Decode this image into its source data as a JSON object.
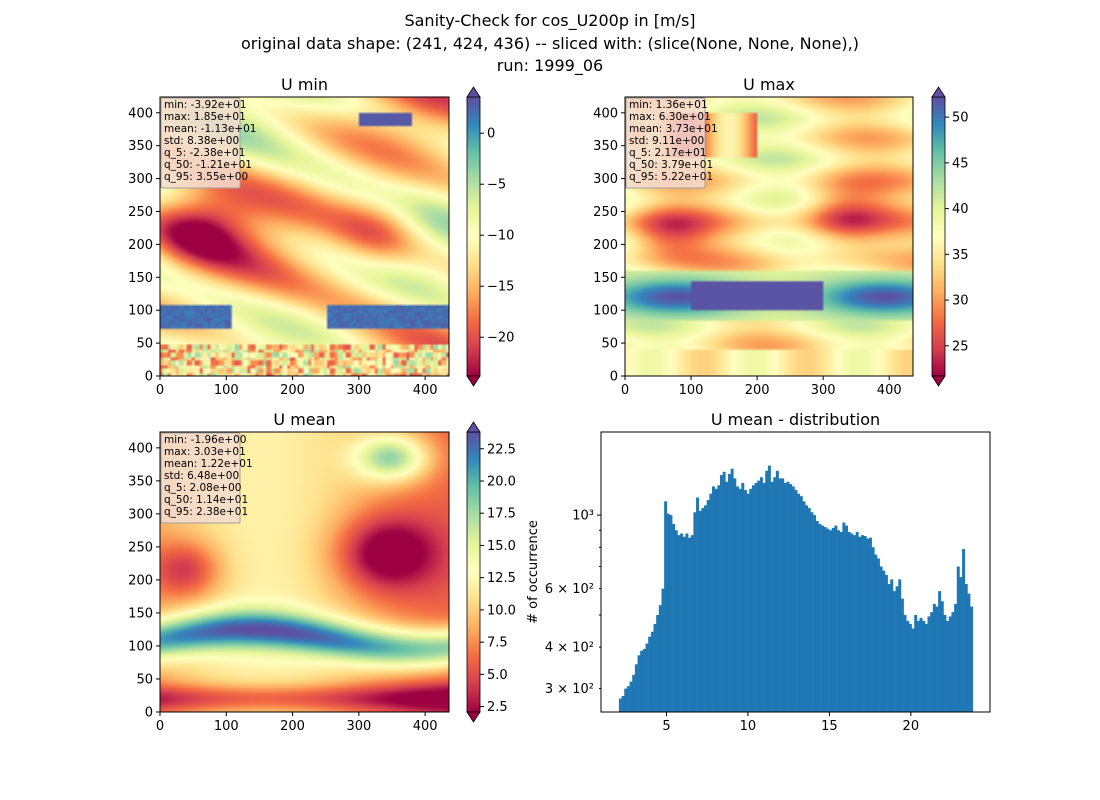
{
  "figure": {
    "title_lines": [
      "Sanity-Check for cos_U200p in [m/s]",
      "original data shape: (241, 424, 436) -- sliced with: (slice(None, None, None),)",
      "run: 1999_06"
    ]
  },
  "colors": {
    "cmap_spectral": [
      "#9e0142",
      "#d53e4f",
      "#f46d43",
      "#fdae61",
      "#fee08b",
      "#ffffbf",
      "#e6f598",
      "#abdda4",
      "#66c2a5",
      "#3288bd",
      "#5e4fa2"
    ],
    "hist_bar": "#1f77b4",
    "stats_box_bg": "#f5dcd0",
    "stats_box_border": "#a0a0a0"
  },
  "chart_data": [
    {
      "type": "heatmap",
      "id": "u-min",
      "title": "U min",
      "xlim": [
        0,
        436
      ],
      "ylim": [
        0,
        424
      ],
      "xticks": [
        0,
        100,
        200,
        300,
        400
      ],
      "yticks": [
        0,
        50,
        100,
        150,
        200,
        250,
        300,
        350,
        400
      ],
      "colorbar": {
        "min": -23.8,
        "max": 3.55,
        "extend": "both",
        "ticks": [
          0,
          -5,
          -10,
          -15,
          -20
        ],
        "tick_labels": [
          "0",
          "−5",
          "−10",
          "−15",
          "−20"
        ]
      },
      "stats": [
        "min: -3.92e+01",
        "max: 1.85e+01",
        "mean: -1.13e+01",
        "std: 8.38e+00",
        "q_5: -2.38e+01",
        "q_50: -1.21e+01",
        "q_95: 3.55e+00"
      ]
    },
    {
      "type": "heatmap",
      "id": "u-max",
      "title": "U max",
      "xlim": [
        0,
        436
      ],
      "ylim": [
        0,
        424
      ],
      "xticks": [
        0,
        100,
        200,
        300,
        400
      ],
      "yticks": [
        0,
        50,
        100,
        150,
        200,
        250,
        300,
        350,
        400
      ],
      "colorbar": {
        "min": 21.7,
        "max": 52.2,
        "extend": "both",
        "ticks": [
          25,
          30,
          35,
          40,
          45,
          50
        ],
        "tick_labels": [
          "25",
          "30",
          "35",
          "40",
          "45",
          "50"
        ]
      },
      "stats": [
        "min: 1.36e+01",
        "max: 6.30e+01",
        "mean: 3.73e+01",
        "std: 9.11e+00",
        "q_5: 2.17e+01",
        "q_50: 3.79e+01",
        "q_95: 5.22e+01"
      ]
    },
    {
      "type": "heatmap",
      "id": "u-mean",
      "title": "U mean",
      "xlim": [
        0,
        436
      ],
      "ylim": [
        0,
        424
      ],
      "xticks": [
        0,
        100,
        200,
        300,
        400
      ],
      "yticks": [
        0,
        50,
        100,
        150,
        200,
        250,
        300,
        350,
        400
      ],
      "colorbar": {
        "min": 2.08,
        "max": 23.8,
        "extend": "both",
        "ticks": [
          2.5,
          5.0,
          7.5,
          10.0,
          12.5,
          15.0,
          17.5,
          20.0,
          22.5
        ],
        "tick_labels": [
          "2.5",
          "5.0",
          "7.5",
          "10.0",
          "12.5",
          "15.0",
          "17.5",
          "20.0",
          "22.5"
        ]
      },
      "stats": [
        "min: -1.96e+00",
        "max: 3.03e+01",
        "mean: 1.22e+01",
        "std: 6.48e+00",
        "q_5: 2.08e+00",
        "q_50: 1.14e+01",
        "q_95: 2.38e+01"
      ]
    },
    {
      "type": "bar",
      "id": "u-mean-distribution",
      "title": "U mean - distribution",
      "ylabel": "# of occurrence",
      "yscale": "log",
      "xlim": [
        0.98,
        24.86
      ],
      "ylim": [
        255,
        1780
      ],
      "xticks": [
        5,
        10,
        15,
        20
      ],
      "xtick_labels": [
        "5",
        "10",
        "15",
        "20"
      ],
      "yticks": [
        300,
        400,
        600,
        1000
      ],
      "ytick_labels": [
        "3 × 10²",
        "4 × 10²",
        "6 × 10²",
        "10³"
      ],
      "bins": {
        "start": 2.08,
        "end": 23.8
      },
      "counts": [
        280,
        285,
        300,
        305,
        315,
        330,
        355,
        378,
        390,
        395,
        410,
        430,
        445,
        470,
        500,
        535,
        600,
        1100,
        1010,
        1000,
        940,
        900,
        870,
        880,
        860,
        880,
        855,
        870,
        1020,
        1130,
        1030,
        1050,
        1070,
        1110,
        1160,
        1220,
        1200,
        1230,
        1320,
        1350,
        1260,
        1330,
        1380,
        1290,
        1220,
        1200,
        1250,
        1190,
        1160,
        1200,
        1230,
        1250,
        1270,
        1300,
        1250,
        1360,
        1410,
        1260,
        1300,
        1360,
        1290,
        1290,
        1250,
        1260,
        1240,
        1220,
        1190,
        1160,
        1140,
        1100,
        1070,
        1050,
        1020,
        1000,
        960,
        940,
        930,
        920,
        910,
        900,
        915,
        930,
        900,
        890,
        950,
        930,
        890,
        880,
        870,
        890,
        860,
        870,
        865,
        850,
        855,
        800,
        760,
        740,
        700,
        680,
        660,
        620,
        640,
        590,
        610,
        640,
        560,
        500,
        480,
        470,
        455,
        500,
        480,
        490,
        480,
        470,
        495,
        510,
        540,
        530,
        590,
        550,
        500,
        480,
        495,
        510,
        540,
        700,
        650,
        790,
        620,
        580,
        530
      ]
    }
  ]
}
